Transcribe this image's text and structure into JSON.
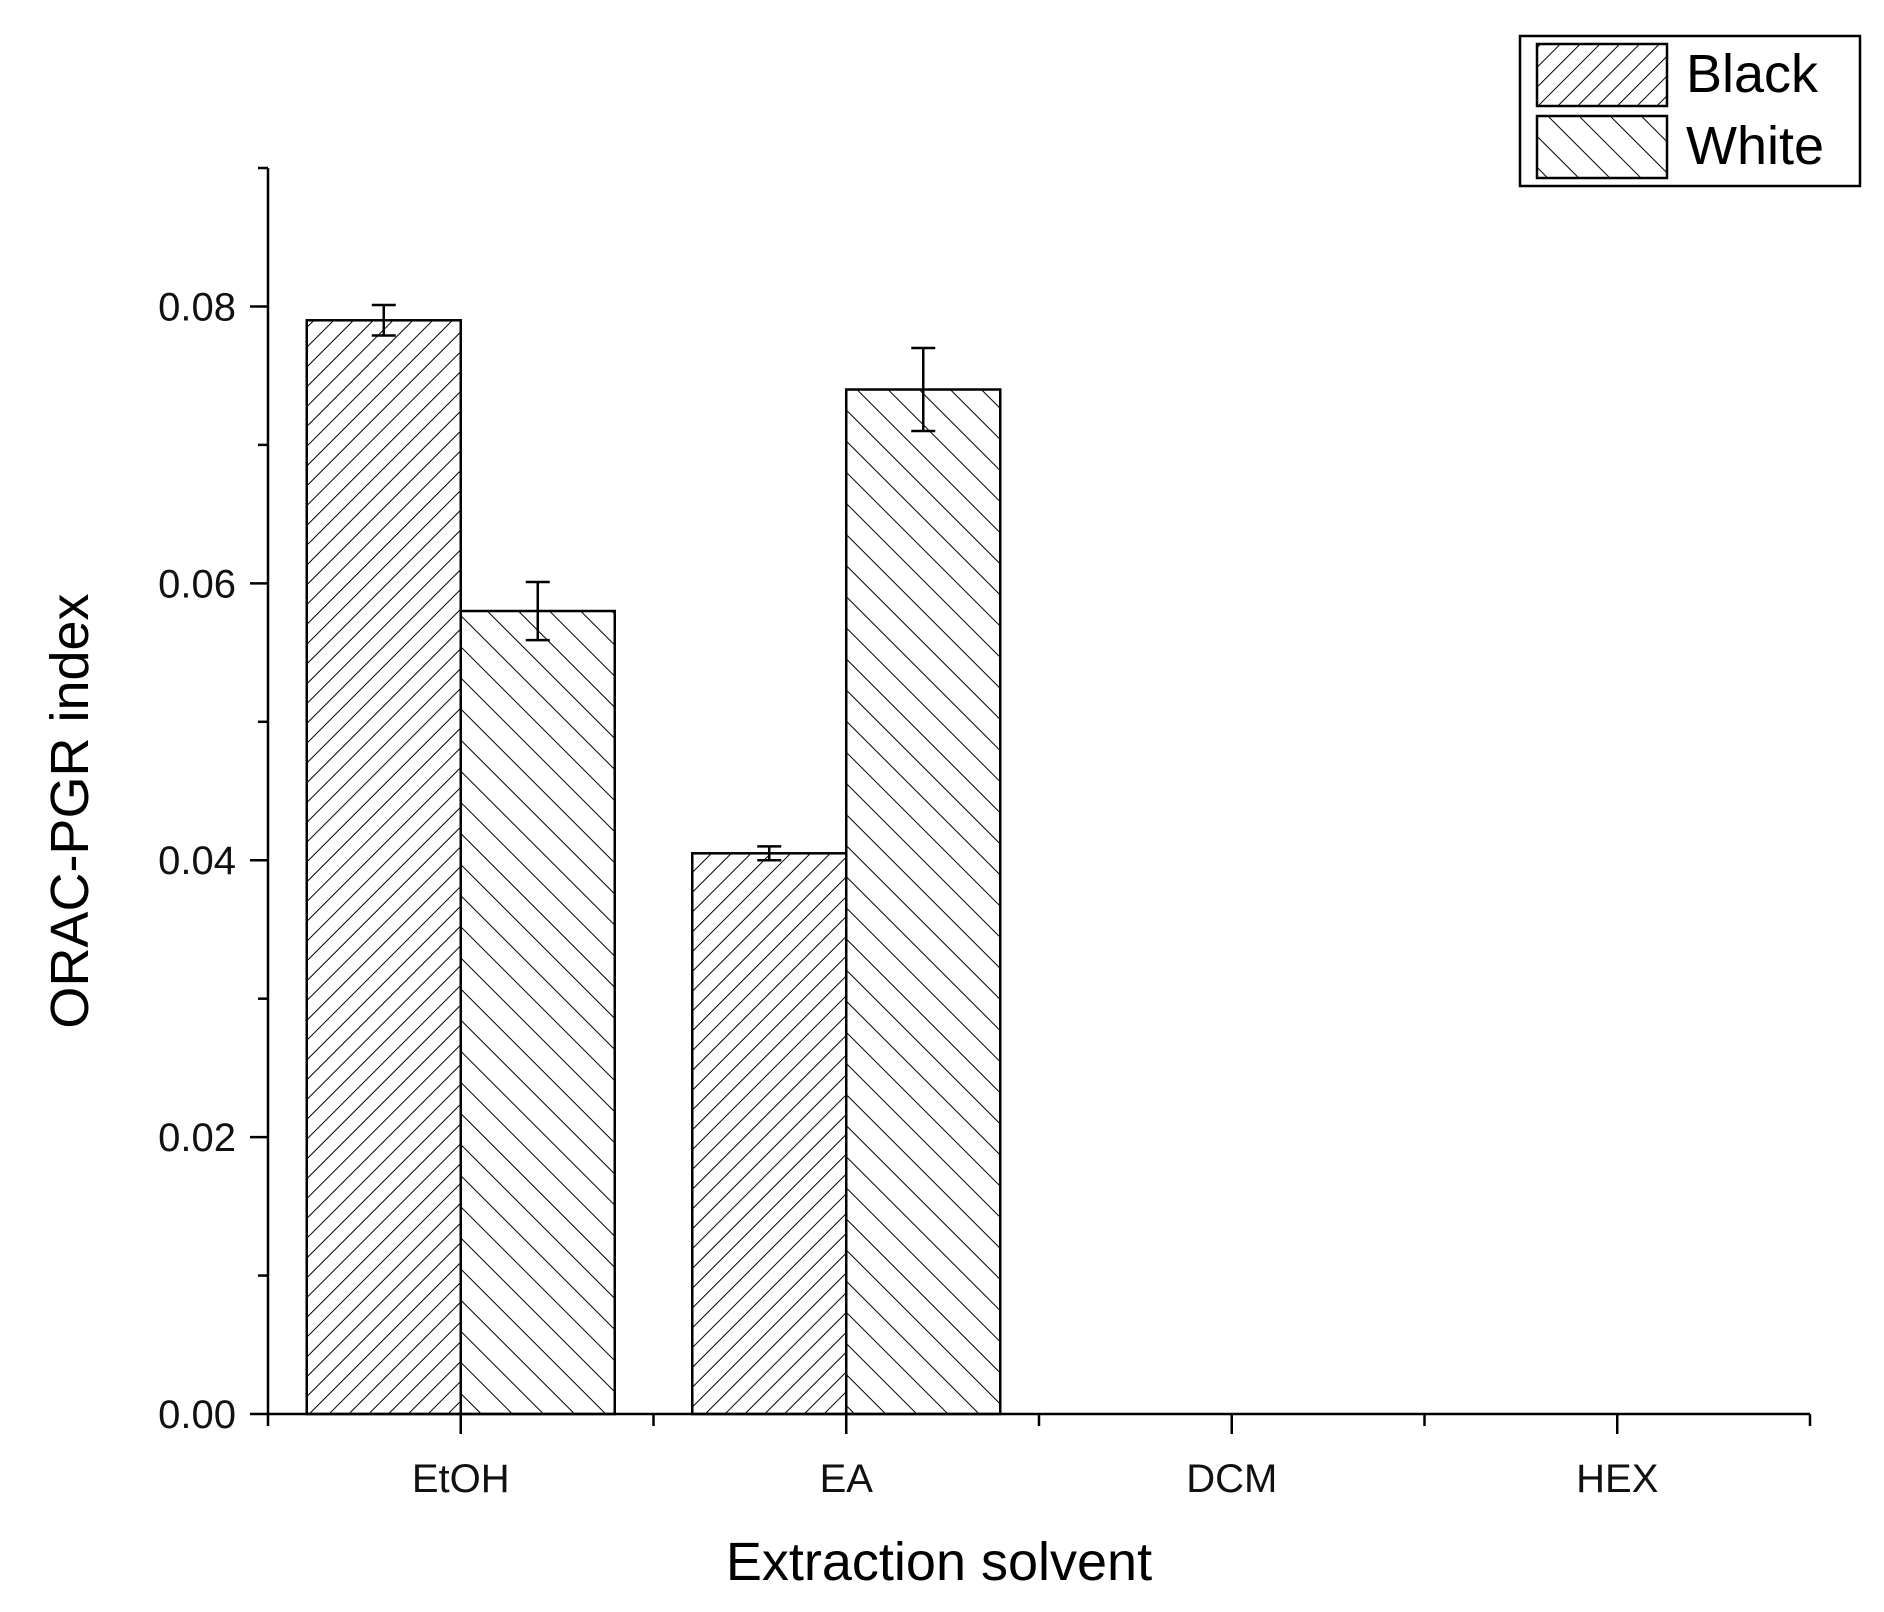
{
  "chart_data": {
    "type": "bar",
    "categories": [
      "EtOH",
      "EA",
      "DCM",
      "HEX"
    ],
    "series": [
      {
        "name": "Black",
        "values": [
          0.079,
          0.0405,
          0,
          0
        ],
        "errors": [
          0.0011,
          0.0005,
          0,
          0
        ],
        "pattern": "diagonal-up"
      },
      {
        "name": "White",
        "values": [
          0.058,
          0.074,
          0,
          0
        ],
        "errors": [
          0.0021,
          0.003,
          0,
          0
        ],
        "pattern": "diagonal-down"
      }
    ],
    "xlabel": "Extraction solvent",
    "ylabel": "ORAC-PGR index",
    "ylim": [
      0,
      0.09
    ],
    "yticks": [
      0.0,
      0.02,
      0.04,
      0.06,
      0.08
    ],
    "ytick_labels": [
      "0.00",
      "0.02",
      "0.04",
      "0.06",
      "0.08"
    ],
    "grid": false,
    "legend_position": "top-right"
  }
}
